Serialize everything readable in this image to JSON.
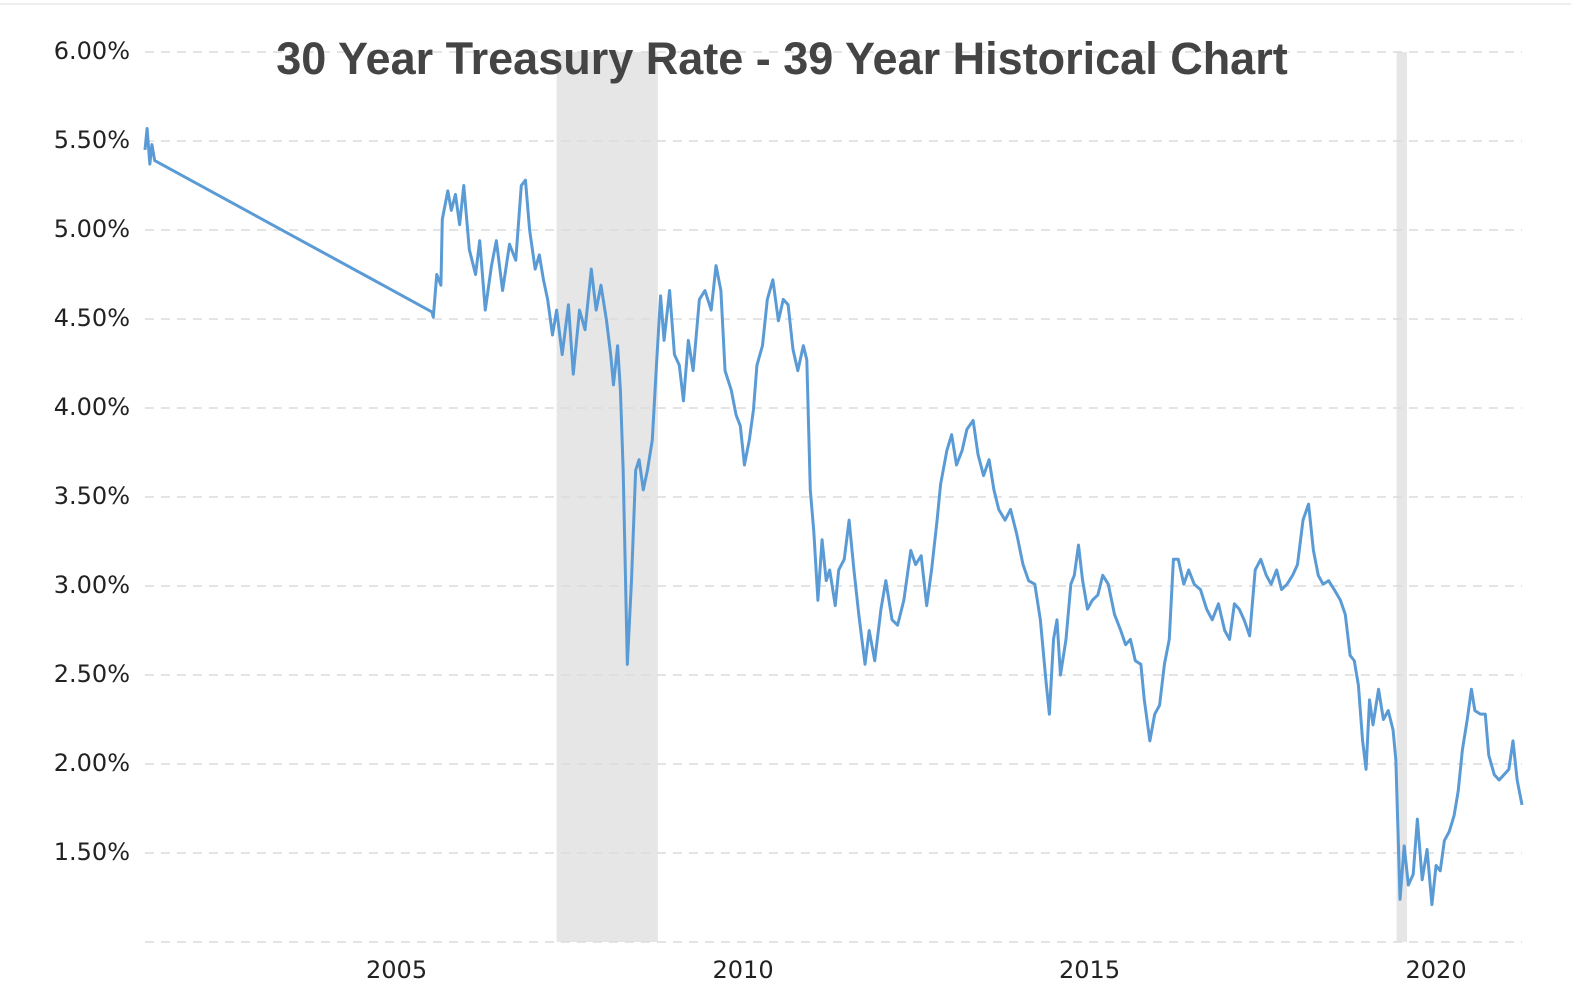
{
  "chart_data": {
    "type": "line",
    "title": "30 Year Treasury Rate - 39 Year Historical Chart",
    "color": "#5b9bd5",
    "grid": true,
    "xlim": [
      2001.37,
      2021.24
    ],
    "xticks": [
      2005,
      2010,
      2015,
      2020
    ],
    "ylim": [
      1.0,
      6.0
    ],
    "yticks": [
      {
        "value": 1.5,
        "label": "1.50%"
      },
      {
        "value": 2.0,
        "label": "2.00%"
      },
      {
        "value": 2.5,
        "label": "2.50%"
      },
      {
        "value": 3.0,
        "label": "3.00%"
      },
      {
        "value": 3.5,
        "label": "3.50%"
      },
      {
        "value": 4.0,
        "label": "4.00%"
      },
      {
        "value": 4.5,
        "label": "4.50%"
      },
      {
        "value": 5.0,
        "label": "5.00%"
      },
      {
        "value": 5.5,
        "label": "5.50%"
      },
      {
        "value": 6.0,
        "label": "6.00%"
      }
    ],
    "shaded_regions": [
      [
        2007.31,
        2008.77
      ],
      [
        2019.43,
        2019.58
      ]
    ],
    "x": [
      2001.37,
      2001.4,
      2001.44,
      2001.47,
      2001.51,
      2005.51,
      2005.53,
      2005.58,
      2005.64,
      2005.66,
      2005.74,
      2005.79,
      2005.85,
      2005.91,
      2005.97,
      2006.05,
      2006.14,
      2006.2,
      2006.28,
      2006.37,
      2006.44,
      2006.53,
      2006.63,
      2006.72,
      2006.8,
      2006.86,
      2006.92,
      2007.0,
      2007.06,
      2007.12,
      2007.18,
      2007.25,
      2007.31,
      2007.39,
      2007.48,
      2007.55,
      2007.64,
      2007.72,
      2007.81,
      2007.88,
      2007.95,
      2008.03,
      2008.09,
      2008.13,
      2008.19,
      2008.23,
      2008.27,
      2008.33,
      2008.39,
      2008.45,
      2008.5,
      2008.56,
      2008.62,
      2008.69,
      2008.75,
      2008.81,
      2008.86,
      2008.94,
      2009.01,
      2009.08,
      2009.14,
      2009.21,
      2009.28,
      2009.37,
      2009.45,
      2009.54,
      2009.61,
      2009.68,
      2009.74,
      2009.83,
      2009.9,
      2009.96,
      2010.02,
      2010.09,
      2010.15,
      2010.2,
      2010.28,
      2010.35,
      2010.43,
      2010.51,
      2010.58,
      2010.65,
      2010.72,
      2010.79,
      2010.87,
      2010.92,
      2010.97,
      2011.02,
      2011.08,
      2011.14,
      2011.2,
      2011.25,
      2011.33,
      2011.38,
      2011.46,
      2011.53,
      2011.6,
      2011.67,
      2011.76,
      2011.82,
      2011.9,
      2011.99,
      2012.06,
      2012.15,
      2012.23,
      2012.32,
      2012.42,
      2012.49,
      2012.57,
      2012.65,
      2012.72,
      2012.8,
      2012.85,
      2012.94,
      2013.01,
      2013.08,
      2013.16,
      2013.23,
      2013.32,
      2013.39,
      2013.47,
      2013.55,
      2013.62,
      2013.69,
      2013.78,
      2013.86,
      2013.95,
      2014.04,
      2014.12,
      2014.21,
      2014.29,
      2014.37,
      2014.42,
      2014.48,
      2014.53,
      2014.58,
      2014.66,
      2014.73,
      2014.78,
      2014.84,
      2014.9,
      2014.97,
      2015.04,
      2015.12,
      2015.19,
      2015.27,
      2015.36,
      2015.45,
      2015.52,
      2015.59,
      2015.66,
      2015.74,
      2015.79,
      2015.87,
      2015.94,
      2016.01,
      2016.08,
      2016.15,
      2016.21,
      2016.28,
      2016.36,
      2016.43,
      2016.51,
      2016.6,
      2016.69,
      2016.77,
      2016.86,
      2016.95,
      2017.02,
      2017.09,
      2017.16,
      2017.23,
      2017.31,
      2017.39,
      2017.47,
      2017.55,
      2017.62,
      2017.7,
      2017.77,
      2017.85,
      2017.93,
      2018.0,
      2018.08,
      2018.16,
      2018.23,
      2018.3,
      2018.37,
      2018.45,
      2018.53,
      2018.62,
      2018.69,
      2018.76,
      2018.82,
      2018.88,
      2018.94,
      2018.99,
      2019.04,
      2019.09,
      2019.17,
      2019.24,
      2019.31,
      2019.38,
      2019.42,
      2019.48,
      2019.54,
      2019.6,
      2019.67,
      2019.73,
      2019.8,
      2019.87,
      2019.94,
      2020.0,
      2020.06,
      2020.12,
      2020.19,
      2020.26,
      2020.32,
      2020.38,
      2020.45,
      2020.51,
      2020.56,
      2020.64,
      2020.71,
      2020.76,
      2020.84,
      2020.91,
      2020.98,
      2021.05,
      2021.11,
      2021.17,
      2021.24
    ],
    "values": [
      5.45,
      5.57,
      5.37,
      5.48,
      5.39,
      4.54,
      4.51,
      4.75,
      4.69,
      5.06,
      5.22,
      5.11,
      5.2,
      5.03,
      5.25,
      4.89,
      4.75,
      4.94,
      4.55,
      4.8,
      4.94,
      4.66,
      4.92,
      4.83,
      5.25,
      5.28,
      5.0,
      4.78,
      4.86,
      4.72,
      4.61,
      4.41,
      4.55,
      4.3,
      4.58,
      4.19,
      4.55,
      4.44,
      4.78,
      4.55,
      4.69,
      4.49,
      4.3,
      4.13,
      4.35,
      4.1,
      3.65,
      2.56,
      3.03,
      3.65,
      3.71,
      3.54,
      3.65,
      3.82,
      4.24,
      4.63,
      4.38,
      4.66,
      4.3,
      4.24,
      4.04,
      4.38,
      4.21,
      4.61,
      4.66,
      4.55,
      4.8,
      4.66,
      4.21,
      4.1,
      3.96,
      3.9,
      3.68,
      3.82,
      3.99,
      4.24,
      4.35,
      4.61,
      4.72,
      4.49,
      4.61,
      4.58,
      4.33,
      4.21,
      4.35,
      4.27,
      3.54,
      3.31,
      2.92,
      3.26,
      3.03,
      3.09,
      2.89,
      3.09,
      3.15,
      3.37,
      3.09,
      2.84,
      2.56,
      2.75,
      2.58,
      2.87,
      3.03,
      2.81,
      2.78,
      2.92,
      3.2,
      3.12,
      3.17,
      2.89,
      3.09,
      3.37,
      3.57,
      3.76,
      3.85,
      3.68,
      3.76,
      3.88,
      3.93,
      3.74,
      3.62,
      3.71,
      3.54,
      3.43,
      3.37,
      3.43,
      3.29,
      3.12,
      3.03,
      3.01,
      2.81,
      2.47,
      2.28,
      2.7,
      2.81,
      2.5,
      2.7,
      3.01,
      3.06,
      3.23,
      3.03,
      2.87,
      2.92,
      2.95,
      3.06,
      3.01,
      2.84,
      2.75,
      2.67,
      2.7,
      2.58,
      2.56,
      2.36,
      2.13,
      2.28,
      2.33,
      2.56,
      2.7,
      3.15,
      3.15,
      3.01,
      3.09,
      3.01,
      2.98,
      2.87,
      2.81,
      2.9,
      2.75,
      2.7,
      2.9,
      2.87,
      2.81,
      2.72,
      3.09,
      3.15,
      3.06,
      3.01,
      3.09,
      2.98,
      3.01,
      3.06,
      3.12,
      3.37,
      3.46,
      3.2,
      3.06,
      3.01,
      3.03,
      2.98,
      2.92,
      2.84,
      2.61,
      2.58,
      2.44,
      2.13,
      1.97,
      2.36,
      2.22,
      2.42,
      2.25,
      2.3,
      2.19,
      2.02,
      1.24,
      1.54,
      1.32,
      1.38,
      1.69,
      1.35,
      1.52,
      1.21,
      1.43,
      1.4,
      1.57,
      1.62,
      1.71,
      1.85,
      2.08,
      2.25,
      2.42,
      2.3,
      2.28,
      2.28,
      2.05,
      1.94,
      1.91,
      1.94,
      1.97,
      2.13,
      1.91,
      1.77
    ]
  }
}
